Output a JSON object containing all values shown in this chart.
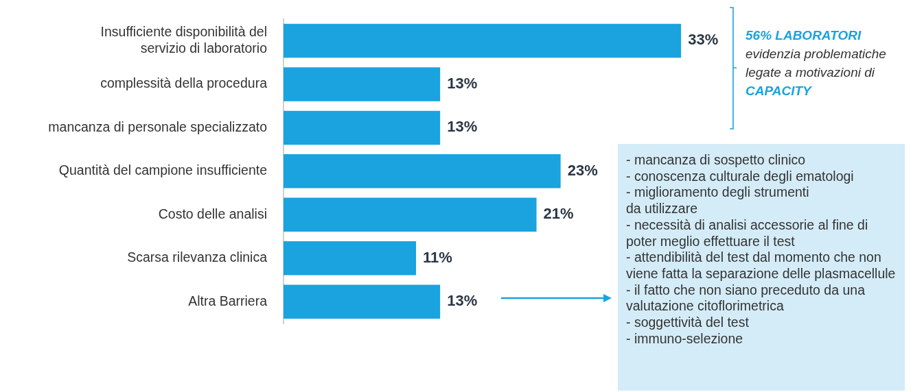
{
  "chart_data": {
    "type": "bar",
    "orientation": "horizontal",
    "categories": [
      "Insufficiente disponibilità del\nservizio di laboratorio",
      "complessità della procedura",
      "mancanza di personale specializzato",
      "Quantità del campione insufficiente",
      "Costo delle analisi",
      "Scarsa rilevanza clinica",
      "Altra Barriera"
    ],
    "values": [
      33,
      13,
      13,
      23,
      21,
      11,
      13
    ],
    "value_labels": [
      "33%",
      "13%",
      "13%",
      "23%",
      "21%",
      "11%",
      "13%"
    ],
    "color": "#1aa3de",
    "legend": false,
    "annotations": [
      "56% LABORATORI",
      "evidenzia problematiche legate a motivazioni di",
      "CAPACITY",
      "- mancanza di sospetto clinico\n- conoscenza culturale degli ematologi\n- miglioramento degli strumenti\nda utilizzare\n- necessità di analisi accessorie al fine di poter meglio effettuare il test\n- attendibilità del test dal momento che non viene fatta la separazione delle plasmacellule\n- il fatto che non siano preceduto da una valutazione citoflorimetrica\n- soggettività del test\n- immuno-selezione"
    ]
  }
}
